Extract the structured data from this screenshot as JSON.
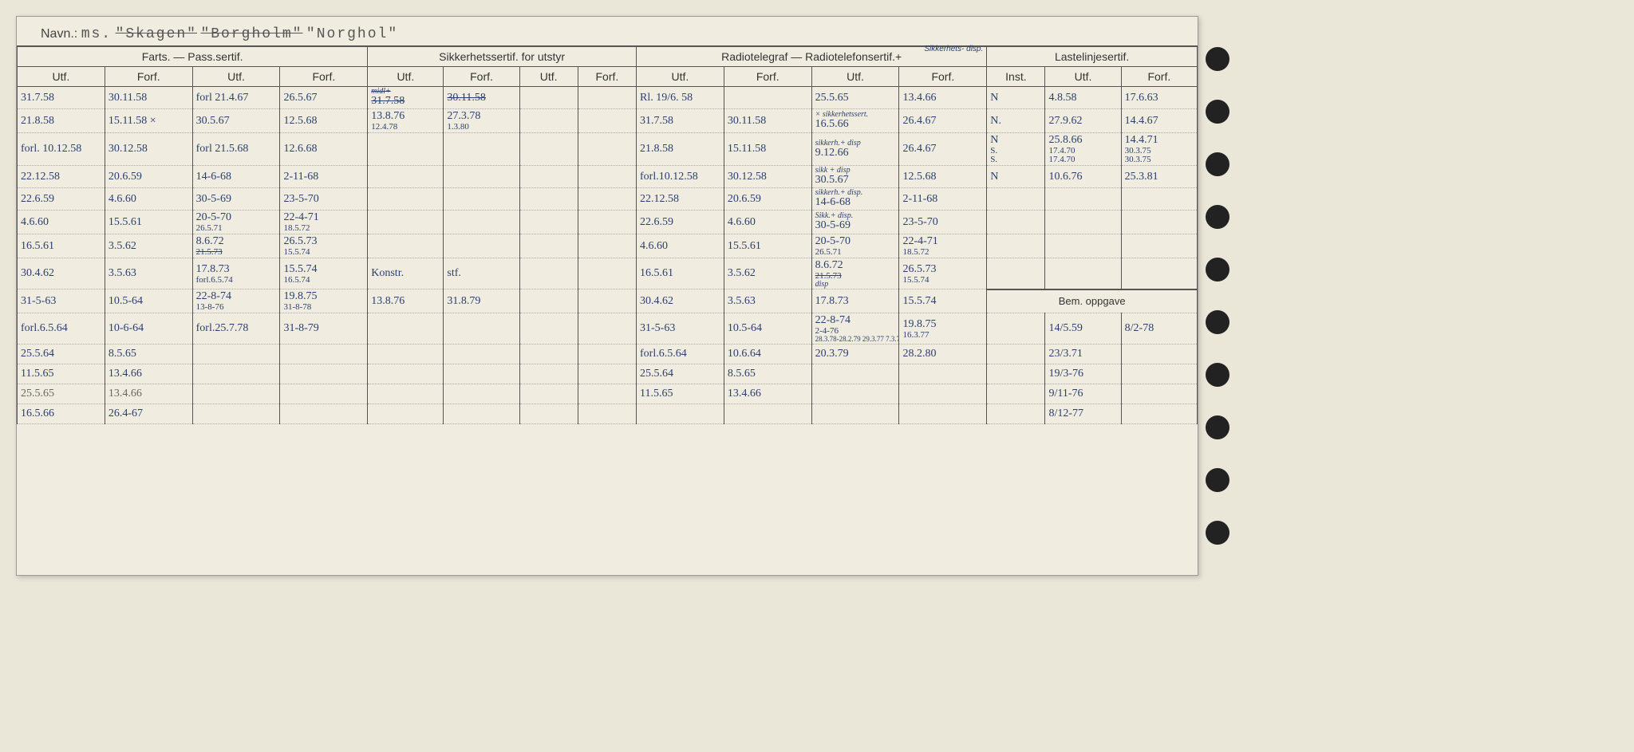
{
  "header": {
    "label": "Navn.:",
    "prefix": "ms.",
    "struck1": "\"Skagen\"",
    "struck2": "\"Borgholm\"",
    "name": "\"Norghol\""
  },
  "groups": {
    "g1": "Farts. — Pass.sertif.",
    "g2": "Sikkerhetssertif. for utstyr",
    "g3": "Radiotelegraf — Radiotelefonsertif.+",
    "g3_note": "Sikkerhets- disp.",
    "g4": "Lastelinjesertif.",
    "bem": "Bem. oppgave"
  },
  "cols": {
    "utf": "Utf.",
    "forf": "Forf.",
    "inst": "Inst."
  },
  "rows": [
    {
      "c": [
        "31.7.58",
        "30.11.58",
        "forl 21.4.67",
        "26.5.67",
        "31.7.58",
        "30.11.58",
        "",
        "",
        "Rl. 19/6. 58",
        "",
        "25.5.65",
        "13.4.66",
        "N",
        "4.8.58",
        "17.6.63"
      ],
      "strike5": true,
      "strike6": true,
      "note5": "midl+"
    },
    {
      "c": [
        "21.8.58",
        "15.11.58 ×",
        "30.5.67",
        "12.5.68",
        "13.8.76",
        "27.3.78",
        "",
        "",
        "31.7.58",
        "30.11.58",
        "16.5.66",
        "26.4.67",
        "N.",
        "27.9.62",
        "14.4.67"
      ],
      "sub5": "12.4.78",
      "sub6": "1.3.80",
      "note11": "× sikkerhetssert."
    },
    {
      "c": [
        "forl. 10.12.58",
        "30.12.58",
        "forl 21.5.68",
        "12.6.68",
        "",
        "",
        "",
        "",
        "21.8.58",
        "15.11.58",
        "9.12.66",
        "26.4.67",
        "N",
        "25.8.66",
        "14.4.71"
      ],
      "note11": "sikkerh.+ disp",
      "sub13": "S.",
      "sub14": "17.4.70",
      "sub15": "30.3.75"
    },
    {
      "c": [
        "22.12.58",
        "20.6.59",
        "14-6-68",
        "2-11-68",
        "",
        "",
        "",
        "",
        "forl.10.12.58",
        "30.12.58",
        "30.5.67",
        "12.5.68",
        "N",
        "10.6.76",
        "25.3.81"
      ],
      "note11": "sikk + disp"
    },
    {
      "c": [
        "22.6.59",
        "4.6.60",
        "30-5-69",
        "23-5-70",
        "",
        "",
        "",
        "",
        "22.12.58",
        "20.6.59",
        "14-6-68",
        "2-11-68",
        "",
        "",
        ""
      ],
      "note11": "sikkerh.+ disp."
    },
    {
      "c": [
        "4.6.60",
        "15.5.61",
        "20-5-70",
        "22-4-71",
        "",
        "",
        "",
        "",
        "22.6.59",
        "4.6.60",
        "30-5-69",
        "23-5-70",
        "",
        "",
        ""
      ],
      "sub3": "26.5.71",
      "sub4": "18.5.72",
      "note11": "Sikk.+ disp."
    },
    {
      "c": [
        "16.5.61",
        "3.5.62",
        "8.6.72",
        "26.5.73",
        "",
        "",
        "",
        "",
        "4.6.60",
        "15.5.61",
        "20-5-70",
        "22-4-71",
        "",
        "",
        ""
      ],
      "sub3": "21.5.73",
      "sub4": "15.5.74",
      "sub11": "26.5.71",
      "sub12": "18.5.72",
      "strike_sub3": true
    },
    {
      "c": [
        "30.4.62",
        "3.5.63",
        "17.8.73",
        "15.5.74",
        "Konstr.",
        "stf.",
        "",
        "",
        "16.5.61",
        "3.5.62",
        "8.6.72",
        "26.5.73",
        "",
        "",
        ""
      ],
      "sub3": "forl.6.5.74",
      "sub4": "16.5.74",
      "sub11": "21.5.73",
      "sub12": "15.5.74",
      "strike_sub11": true,
      "note11b": "disp"
    },
    {
      "c": [
        "31-5-63",
        "10.5-64",
        "22-8-74",
        "19.8.75",
        "13.8.76",
        "31.8.79",
        "",
        "",
        "30.4.62",
        "3.5.63",
        "17.8.73",
        "15.5.74",
        "",
        "",
        ""
      ],
      "sub3": "13-8-76",
      "sub4": "31-8-78",
      "bem_row": true,
      "bem_header": true
    },
    {
      "c": [
        "forl.6.5.64",
        "10-6-64",
        "forl.25.7.78",
        "31-8-79",
        "",
        "",
        "",
        "",
        "31-5-63",
        "10.5-64",
        "22-8-74",
        "19.8.75",
        "",
        "14/5.59",
        "8/2-78"
      ],
      "sub11": "2-4-76",
      "sub12": "16.3.77",
      "sub11b": "28.3.78-28.2.79 29.3.77 7.3.78"
    },
    {
      "c": [
        "25.5.64",
        "8.5.65",
        "",
        "",
        "",
        "",
        "",
        "",
        "forl.6.5.64",
        "10.6.64",
        "20.3.79",
        "28.2.80",
        "",
        "23/3.71",
        ""
      ]
    },
    {
      "c": [
        "11.5.65",
        "13.4.66",
        "",
        "",
        "",
        "",
        "",
        "",
        "25.5.64",
        "8.5.65",
        "",
        "",
        "",
        "19/3-76",
        ""
      ]
    },
    {
      "c": [
        "25.5.65",
        "13.4.66",
        "",
        "",
        "",
        "",
        "",
        "",
        "11.5.65",
        "13.4.66",
        "",
        "",
        "",
        "9/11-76",
        ""
      ],
      "pencil": true
    },
    {
      "c": [
        "16.5.66",
        "26.4-67",
        "",
        "",
        "",
        "",
        "",
        "",
        "",
        "",
        "",
        "",
        "",
        "8/12-77",
        ""
      ]
    }
  ]
}
